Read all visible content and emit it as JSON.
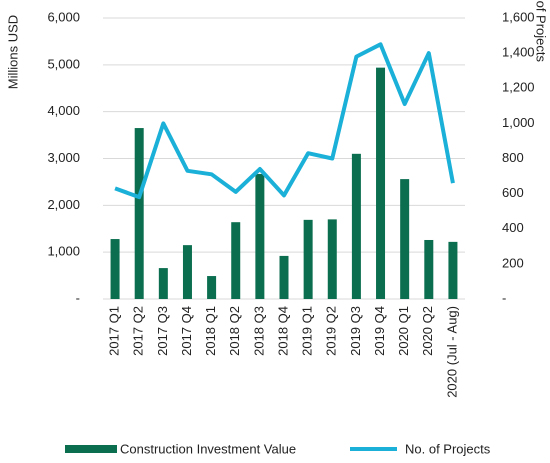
{
  "chart_data": {
    "type": "bar_line",
    "ylabel": "Millions USD",
    "y2label": "Number of Projects",
    "categories": [
      "2017 Q1",
      "2017 Q2",
      "2017 Q3",
      "2017 Q4",
      "2018 Q1",
      "2018 Q2",
      "2018 Q3",
      "2018 Q4",
      "2019 Q1",
      "2019 Q2",
      "2019 Q3",
      "2019 Q4",
      "2020 Q1",
      "2020 Q2",
      "2020 (Jul - Aug)"
    ],
    "series": [
      {
        "name": "Construction Investment Value",
        "type": "bar",
        "color": "#0b6e4f",
        "axis": "y",
        "values": [
          1280,
          3650,
          660,
          1150,
          490,
          1640,
          2670,
          920,
          1690,
          1700,
          3100,
          4940,
          2560,
          1260,
          1220
        ]
      },
      {
        "name": "No. of Projects",
        "type": "line",
        "color": "#1ab0d8",
        "axis": "y2",
        "values": [
          630,
          580,
          1000,
          730,
          710,
          610,
          740,
          590,
          830,
          800,
          1380,
          1450,
          1110,
          1400,
          660
        ]
      }
    ],
    "ylim": [
      0,
      6000
    ],
    "yticks": [
      {
        "value": 0,
        "label": "-"
      },
      {
        "value": 1000,
        "label": "1,000"
      },
      {
        "value": 2000,
        "label": "2,000"
      },
      {
        "value": 3000,
        "label": "3,000"
      },
      {
        "value": 4000,
        "label": "4,000"
      },
      {
        "value": 5000,
        "label": "5,000"
      },
      {
        "value": 6000,
        "label": "6,000"
      }
    ],
    "y2lim": [
      0,
      1600
    ],
    "y2ticks": [
      {
        "value": 0,
        "label": "-"
      },
      {
        "value": 200,
        "label": "200"
      },
      {
        "value": 400,
        "label": "400"
      },
      {
        "value": 600,
        "label": "600"
      },
      {
        "value": 800,
        "label": "800"
      },
      {
        "value": 1000,
        "label": "1,000"
      },
      {
        "value": 1200,
        "label": "1,200"
      },
      {
        "value": 1400,
        "label": "1,400"
      },
      {
        "value": 1600,
        "label": "1,600"
      }
    ],
    "grid": true
  }
}
